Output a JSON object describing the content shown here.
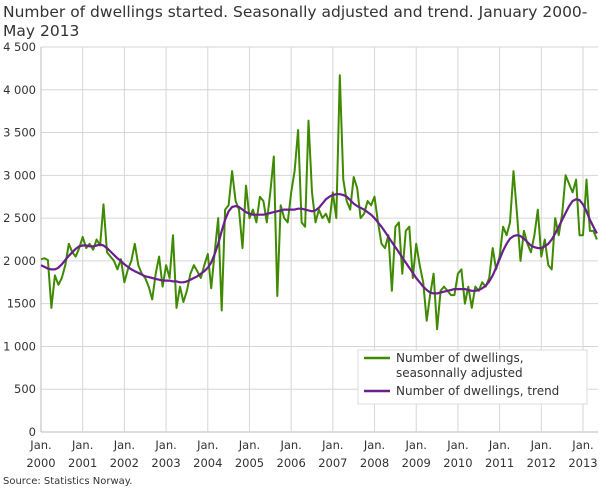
{
  "chart_data": {
    "type": "line",
    "title_line1": "Number of dwellings started. Seasonally adjusted and trend. January 2000-",
    "title_line2": "May 2013",
    "source": "Source: Statistics Norway.",
    "x_start": "2000-01",
    "x_end": "2013-05",
    "x_frequency": "monthly",
    "ylim": [
      0,
      4500
    ],
    "y_ticks": [
      0,
      500,
      1000,
      1500,
      2000,
      2500,
      3000,
      3500,
      4000,
      4500
    ],
    "y_tick_labels": [
      "0",
      "500",
      "1 000",
      "1500",
      "2 000",
      "2 500",
      "3 000",
      "3 500",
      "4 000",
      "4 500"
    ],
    "x_tick_labels": [
      {
        "line1": "Jan.",
        "line2": "2000"
      },
      {
        "line1": "Jan.",
        "line2": "2001"
      },
      {
        "line1": "Jan.",
        "line2": "2002"
      },
      {
        "line1": "Jan.",
        "line2": "2003"
      },
      {
        "line1": "Jan.",
        "line2": "2004"
      },
      {
        "line1": "Jan.",
        "line2": "2005"
      },
      {
        "line1": "Jan.",
        "line2": "2006"
      },
      {
        "line1": "Jan.",
        "line2": "2007"
      },
      {
        "line1": "Jan.",
        "line2": "2008"
      },
      {
        "line1": "Jan.",
        "line2": "2009"
      },
      {
        "line1": "Jan.",
        "line2": "2010"
      },
      {
        "line1": "Jan.",
        "line2": "2011"
      },
      {
        "line1": "Jan.",
        "line2": "2012"
      },
      {
        "line1": "Jan.",
        "line2": "2013"
      }
    ],
    "grid": true,
    "legend_placement": "bottom-right",
    "series": [
      {
        "name_line1": "Number of dwellings,",
        "name_line2": "seasonnally adjusted",
        "color": "#3f8a00",
        "values": [
          2020,
          2030,
          2010,
          1450,
          1830,
          1720,
          1800,
          1950,
          2200,
          2100,
          2050,
          2150,
          2280,
          2150,
          2200,
          2130,
          2250,
          2180,
          2660,
          2100,
          2050,
          2000,
          1900,
          2020,
          1750,
          1900,
          2000,
          2200,
          1950,
          1850,
          1800,
          1700,
          1550,
          1850,
          2050,
          1700,
          1950,
          1800,
          2300,
          1450,
          1700,
          1520,
          1650,
          1850,
          1950,
          1880,
          1800,
          1950,
          2080,
          1680,
          2100,
          2500,
          1420,
          2600,
          2650,
          3050,
          2700,
          2600,
          2150,
          2880,
          2500,
          2600,
          2450,
          2750,
          2700,
          2450,
          2800,
          3220,
          1590,
          2650,
          2500,
          2450,
          2800,
          3050,
          3530,
          2450,
          2400,
          3640,
          2800,
          2450,
          2600,
          2500,
          2550,
          2450,
          2800,
          2500,
          4170,
          2950,
          2700,
          2600,
          2980,
          2850,
          2500,
          2550,
          2700,
          2650,
          2750,
          2450,
          2200,
          2150,
          2300,
          1650,
          2400,
          2450,
          1850,
          2350,
          2400,
          1800,
          2200,
          1950,
          1750,
          1300,
          1600,
          1850,
          1200,
          1650,
          1700,
          1650,
          1600,
          1600,
          1850,
          1900,
          1500,
          1700,
          1450,
          1700,
          1650,
          1750,
          1700,
          1800,
          2150,
          1900,
          2050,
          2400,
          2300,
          2450,
          3050,
          2550,
          2000,
          2350,
          2200,
          2100,
          2300,
          2600,
          2050,
          2250,
          1950,
          1900,
          2500,
          2300,
          2550,
          3000,
          2900,
          2800,
          2950,
          2300,
          2300,
          2950,
          2350,
          2350,
          2250
        ]
      },
      {
        "name": "Number of dwellings, trend",
        "color": "#6b1f8f",
        "values": [
          1950,
          1930,
          1910,
          1900,
          1900,
          1920,
          1960,
          2010,
          2060,
          2100,
          2140,
          2170,
          2180,
          2180,
          2170,
          2170,
          2180,
          2190,
          2180,
          2150,
          2110,
          2070,
          2030,
          2000,
          1960,
          1930,
          1900,
          1880,
          1860,
          1840,
          1820,
          1810,
          1800,
          1790,
          1780,
          1770,
          1770,
          1770,
          1760,
          1760,
          1750,
          1750,
          1760,
          1780,
          1800,
          1820,
          1850,
          1880,
          1920,
          1980,
          2080,
          2200,
          2350,
          2480,
          2580,
          2630,
          2640,
          2630,
          2600,
          2570,
          2550,
          2540,
          2540,
          2540,
          2540,
          2550,
          2560,
          2570,
          2580,
          2590,
          2600,
          2600,
          2600,
          2600,
          2610,
          2610,
          2600,
          2590,
          2580,
          2590,
          2620,
          2670,
          2720,
          2750,
          2770,
          2780,
          2780,
          2770,
          2750,
          2710,
          2670,
          2640,
          2620,
          2600,
          2570,
          2540,
          2500,
          2450,
          2400,
          2340,
          2280,
          2220,
          2160,
          2100,
          2040,
          1980,
          1920,
          1860,
          1800,
          1750,
          1700,
          1660,
          1630,
          1620,
          1620,
          1630,
          1640,
          1650,
          1660,
          1670,
          1670,
          1670,
          1670,
          1660,
          1650,
          1650,
          1660,
          1680,
          1710,
          1760,
          1830,
          1920,
          2020,
          2120,
          2200,
          2260,
          2290,
          2300,
          2290,
          2260,
          2220,
          2180,
          2160,
          2150,
          2150,
          2170,
          2200,
          2250,
          2320,
          2400,
          2480,
          2560,
          2640,
          2700,
          2720,
          2710,
          2660,
          2580,
          2480,
          2400,
          2320
        ]
      }
    ]
  }
}
